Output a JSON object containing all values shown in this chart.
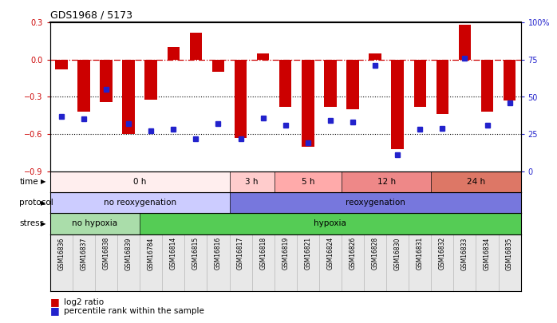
{
  "title": "GDS1968 / 5173",
  "samples": [
    "GSM16836",
    "GSM16837",
    "GSM16838",
    "GSM16839",
    "GSM16784",
    "GSM16814",
    "GSM16815",
    "GSM16816",
    "GSM16817",
    "GSM16818",
    "GSM16819",
    "GSM16821",
    "GSM16824",
    "GSM16826",
    "GSM16828",
    "GSM16830",
    "GSM16831",
    "GSM16832",
    "GSM16833",
    "GSM16834",
    "GSM16835"
  ],
  "log2_ratio": [
    -0.08,
    -0.42,
    -0.34,
    -0.6,
    -0.32,
    0.1,
    0.22,
    -0.1,
    -0.63,
    0.05,
    -0.38,
    -0.7,
    -0.38,
    -0.4,
    0.05,
    -0.72,
    -0.38,
    -0.44,
    0.28,
    -0.42,
    -0.33
  ],
  "percentile_rank": [
    37,
    35,
    55,
    32,
    27,
    28,
    22,
    32,
    22,
    36,
    31,
    19,
    34,
    33,
    71,
    11,
    28,
    29,
    76,
    31,
    46
  ],
  "bar_color": "#cc0000",
  "dot_color": "#2222cc",
  "ref_line_color": "#cc0000",
  "dotted_line_color": "#000000",
  "ylim_left": [
    -0.9,
    0.3
  ],
  "ylim_right": [
    0,
    100
  ],
  "yticks_left": [
    0.3,
    0.0,
    -0.3,
    -0.6,
    -0.9
  ],
  "yticks_right": [
    100,
    75,
    50,
    25,
    0
  ],
  "bg_color": "#ffffff",
  "stress_groups": [
    {
      "label": "no hypoxia",
      "start": 0,
      "end": 4,
      "color": "#aaddaa"
    },
    {
      "label": "hypoxia",
      "start": 4,
      "end": 21,
      "color": "#55cc55"
    }
  ],
  "protocol_groups": [
    {
      "label": "no reoxygenation",
      "start": 0,
      "end": 8,
      "color": "#ccccff"
    },
    {
      "label": "reoxygenation",
      "start": 8,
      "end": 21,
      "color": "#7777dd"
    }
  ],
  "time_groups": [
    {
      "label": "0 h",
      "start": 0,
      "end": 8,
      "color": "#ffeeee"
    },
    {
      "label": "3 h",
      "start": 8,
      "end": 10,
      "color": "#ffcccc"
    },
    {
      "label": "5 h",
      "start": 10,
      "end": 13,
      "color": "#ffaaaa"
    },
    {
      "label": "12 h",
      "start": 13,
      "end": 17,
      "color": "#ee8888"
    },
    {
      "label": "24 h",
      "start": 17,
      "end": 21,
      "color": "#dd7766"
    }
  ],
  "legend_bar_color": "#cc0000",
  "legend_dot_color": "#2222cc",
  "legend_bar_label": "log2 ratio",
  "legend_dot_label": "percentile rank within the sample",
  "bar_width": 0.55,
  "axis_label_color_left": "#cc0000",
  "axis_label_color_right": "#2222cc"
}
